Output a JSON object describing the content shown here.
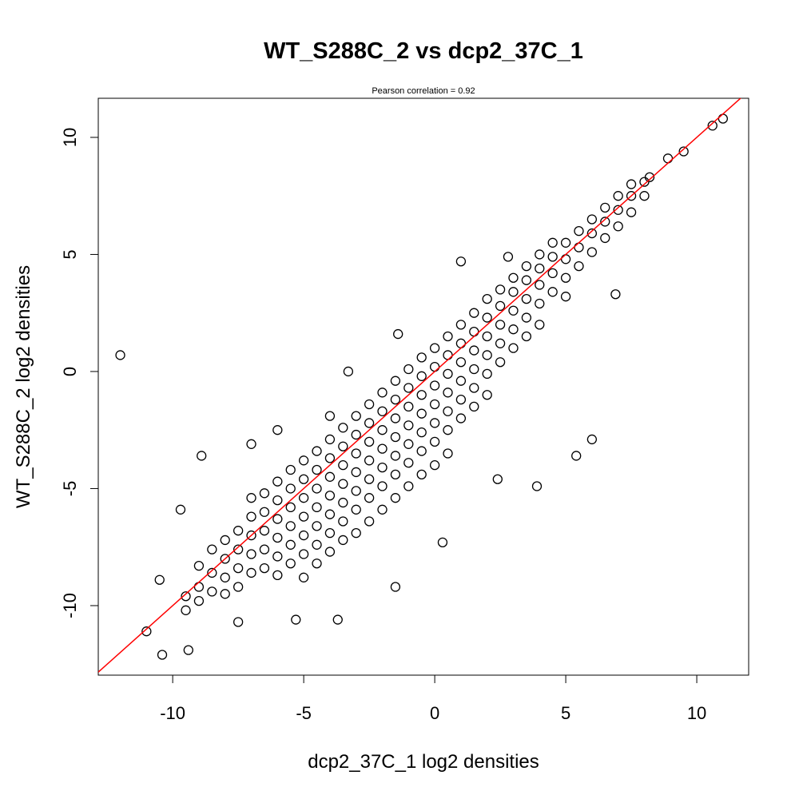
{
  "chart_data": {
    "type": "scatter",
    "title": "WT_S288C_2 vs dcp2_37C_1",
    "subtitle": "Pearson correlation =  0.92",
    "x_label": "dcp2_37C_1 log2 densities",
    "y_label": "WT_S288C_2 log2 densities",
    "xlim": [
      -12.84,
      11.98
    ],
    "ylim": [
      -12.97,
      11.67
    ],
    "xticks": [
      -10,
      -5,
      0,
      5,
      10
    ],
    "yticks": [
      -10,
      -5,
      0,
      5,
      10
    ],
    "reference_line": {
      "slope": 1,
      "intercept": 0,
      "color": "#ff0000"
    },
    "x": [
      -9.5,
      -9.5,
      -9,
      -9,
      -9,
      -8.5,
      -8.5,
      -8.5,
      -8,
      -8,
      -8,
      -8,
      -7.5,
      -7.5,
      -7.5,
      -7.5,
      -7,
      -7,
      -7,
      -7,
      -7,
      -6.5,
      -6.5,
      -6.5,
      -6.5,
      -6.5,
      -6,
      -6,
      -6,
      -6,
      -6,
      -6,
      -5.5,
      -5.5,
      -5.5,
      -5.5,
      -5.5,
      -5.5,
      -5,
      -5,
      -5,
      -5,
      -5,
      -5,
      -5,
      -4.5,
      -4.5,
      -4.5,
      -4.5,
      -4.5,
      -4.5,
      -4.5,
      -4,
      -4,
      -4,
      -4,
      -4,
      -4,
      -4,
      -3.5,
      -3.5,
      -3.5,
      -3.5,
      -3.5,
      -3.5,
      -3.5,
      -3,
      -3,
      -3,
      -3,
      -3,
      -3,
      -3,
      -2.5,
      -2.5,
      -2.5,
      -2.5,
      -2.5,
      -2.5,
      -2.5,
      -2,
      -2,
      -2,
      -2,
      -2,
      -2,
      -2,
      -1.5,
      -1.5,
      -1.5,
      -1.5,
      -1.5,
      -1.5,
      -1.5,
      -1,
      -1,
      -1,
      -1,
      -1,
      -1,
      -1,
      -0.5,
      -0.5,
      -0.5,
      -0.5,
      -0.5,
      -0.5,
      -0.5,
      0,
      0,
      0,
      0,
      0,
      0,
      0,
      0.5,
      0.5,
      0.5,
      0.5,
      0.5,
      0.5,
      0.5,
      1,
      1,
      1,
      1,
      1,
      1,
      1.5,
      1.5,
      1.5,
      1.5,
      1.5,
      1.5,
      2,
      2,
      2,
      2,
      2,
      2,
      2.5,
      2.5,
      2.5,
      2.5,
      2.5,
      3,
      3,
      3,
      3,
      3,
      3.5,
      3.5,
      3.5,
      3.5,
      3.5,
      4,
      4,
      4,
      4,
      4,
      4.5,
      4.5,
      4.5,
      4.5,
      5,
      5,
      5,
      5,
      5.5,
      5.5,
      5.5,
      6,
      6,
      6,
      6.5,
      6.5,
      6.5,
      7,
      7,
      7,
      7.5,
      7.5,
      7.5,
      8,
      8,
      -12,
      -11,
      -10.4,
      -9.4,
      -10.5,
      -8.9,
      -7,
      -6,
      -4,
      -3.3,
      -1.4,
      1,
      2.8,
      3.9,
      5.4,
      6,
      6.9,
      9.5,
      10.6,
      11,
      8.9,
      8.2,
      -5.3,
      -3.7,
      -1.5,
      0.3,
      -9.7,
      2.4,
      -7.5
    ],
    "series": [
      {
        "color": "#000000",
        "values": [
          -9.6,
          -10.2,
          -9.2,
          -8.3,
          -9.8,
          -8.6,
          -7.6,
          -9.4,
          -8.0,
          -7.2,
          -8.8,
          -9.5,
          -7.6,
          -6.8,
          -8.4,
          -9.2,
          -7.0,
          -6.2,
          -7.8,
          -8.6,
          -5.4,
          -6.8,
          -6.0,
          -7.6,
          -5.2,
          -8.4,
          -6.3,
          -5.5,
          -7.1,
          -4.7,
          -7.9,
          -8.7,
          -5.8,
          -5.0,
          -6.6,
          -4.2,
          -7.4,
          -8.2,
          -5.4,
          -4.6,
          -6.2,
          -3.8,
          -7.0,
          -7.8,
          -8.8,
          -5.0,
          -4.2,
          -5.8,
          -3.4,
          -6.6,
          -7.4,
          -8.2,
          -4.5,
          -3.7,
          -5.3,
          -2.9,
          -6.1,
          -6.9,
          -7.7,
          -4.0,
          -3.2,
          -4.8,
          -2.4,
          -5.6,
          -6.4,
          -7.2,
          -3.5,
          -2.7,
          -4.3,
          -1.9,
          -5.1,
          -5.9,
          -6.9,
          -3.0,
          -2.2,
          -3.8,
          -1.4,
          -4.6,
          -5.4,
          -6.4,
          -2.5,
          -1.7,
          -3.3,
          -0.9,
          -4.1,
          -4.9,
          -5.9,
          -2.0,
          -1.2,
          -2.8,
          -0.4,
          -3.6,
          -4.4,
          -5.4,
          -1.5,
          -0.7,
          -2.3,
          0.1,
          -3.1,
          -3.9,
          -4.9,
          -1.0,
          -0.2,
          -1.8,
          0.6,
          -2.6,
          -3.4,
          -4.4,
          -0.6,
          0.2,
          -1.4,
          1.0,
          -2.2,
          -3.0,
          -4.0,
          -0.1,
          0.7,
          -0.9,
          1.5,
          -1.7,
          -2.5,
          -3.5,
          0.4,
          1.2,
          -0.4,
          2.0,
          -1.2,
          -2.0,
          0.9,
          1.7,
          0.1,
          2.5,
          -0.7,
          -1.5,
          1.5,
          2.3,
          0.7,
          3.1,
          -0.1,
          -1.0,
          2.0,
          2.8,
          1.2,
          3.5,
          0.4,
          2.6,
          3.4,
          1.8,
          4.0,
          1.0,
          3.1,
          3.9,
          2.3,
          4.5,
          1.5,
          3.7,
          4.4,
          2.9,
          5.0,
          2.0,
          4.2,
          4.9,
          3.4,
          5.5,
          4.8,
          5.5,
          4.0,
          3.2,
          5.3,
          6.0,
          4.5,
          5.9,
          6.5,
          5.1,
          6.4,
          7.0,
          5.7,
          6.9,
          7.5,
          6.2,
          7.5,
          8.0,
          6.8,
          8.1,
          7.5,
          0.7,
          -11.1,
          -12.1,
          -11.9,
          -8.9,
          -3.6,
          -3.1,
          -2.5,
          -1.9,
          0,
          1.6,
          4.7,
          4.9,
          -4.9,
          -3.6,
          -2.9,
          3.3,
          9.4,
          10.5,
          10.8,
          9.1,
          8.3,
          -10.6,
          -10.6,
          -9.2,
          -7.3,
          -5.9,
          -4.6,
          -10.7
        ]
      }
    ]
  }
}
